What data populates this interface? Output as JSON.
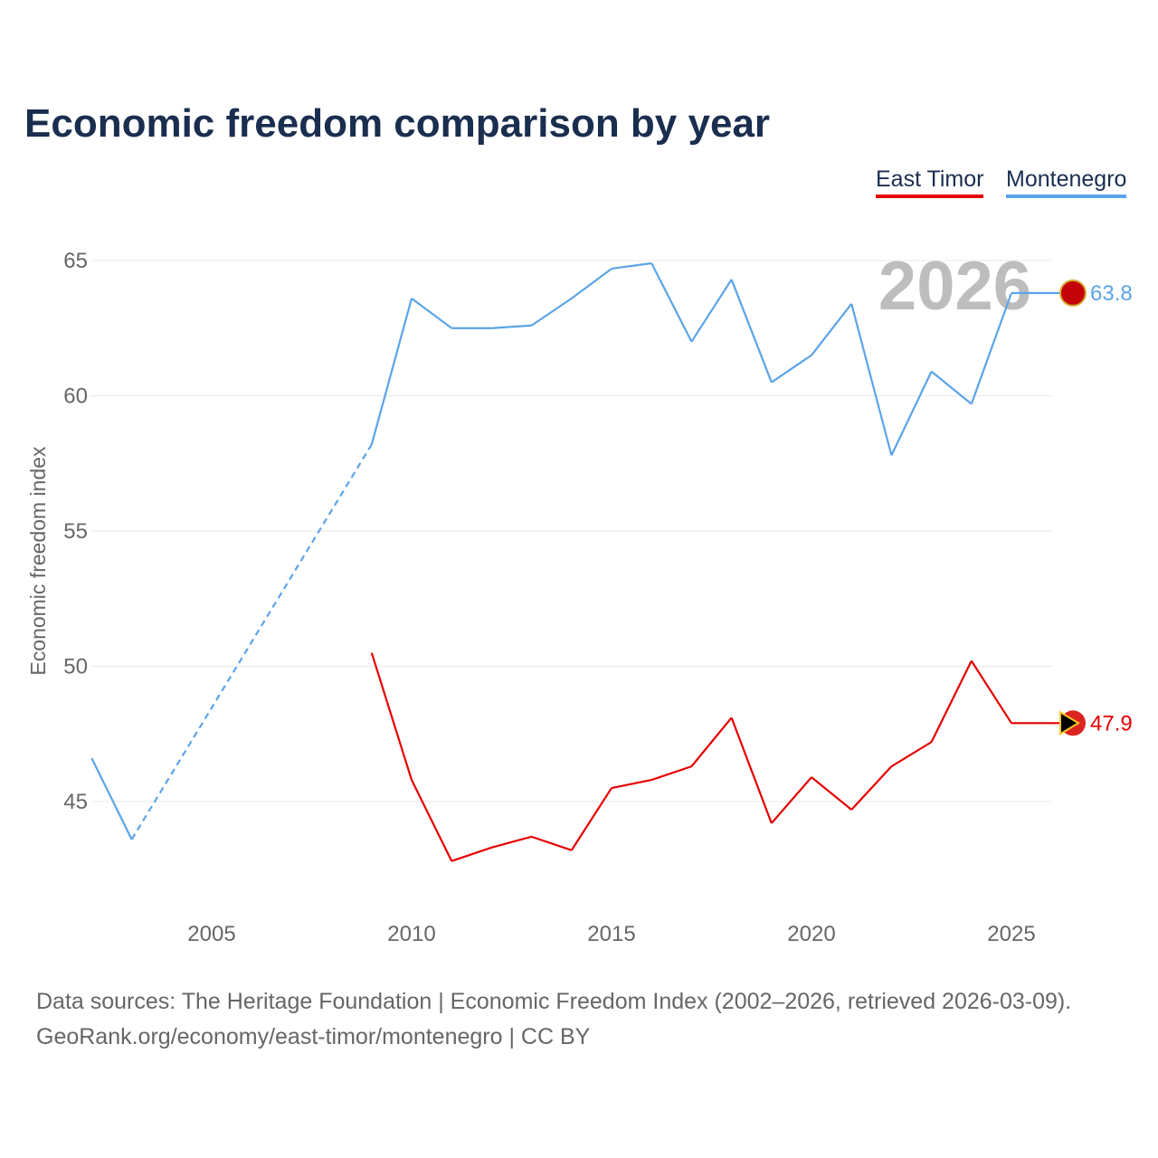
{
  "title": "Economic freedom comparison by year",
  "source_line1": "Data sources: The Heritage Foundation | Economic Freedom Index (2002–2026, retrieved 2026-03-09).",
  "source_line2": "GeoRank.org/economy/east-timor/montenegro | CC BY",
  "chart_data": {
    "type": "line",
    "title": "Economic freedom comparison by year",
    "xlabel": "",
    "ylabel": "Economic freedom index",
    "xlim": [
      2002,
      2026
    ],
    "ylim": [
      41,
      67
    ],
    "xticks": [
      2005,
      2010,
      2015,
      2020,
      2025
    ],
    "yticks": [
      45,
      50,
      55,
      60,
      65
    ],
    "year_label": "2026",
    "legend_position": "top-right",
    "series": [
      {
        "name": "East Timor",
        "color": "#e60000",
        "end_label": "47.9",
        "x": [
          2009,
          2010,
          2011,
          2012,
          2013,
          2014,
          2015,
          2016,
          2017,
          2018,
          2019,
          2020,
          2021,
          2022,
          2023,
          2024,
          2025,
          2026
        ],
        "values": [
          50.5,
          45.8,
          42.8,
          43.3,
          43.7,
          43.2,
          45.5,
          45.8,
          46.3,
          48.1,
          44.2,
          45.9,
          44.7,
          46.3,
          47.2,
          50.2,
          47.9,
          47.9
        ]
      },
      {
        "name": "Montenegro",
        "color": "#5ba4e8",
        "end_label": "63.8",
        "dashed_gap": [
          2003,
          2009
        ],
        "x": [
          2002,
          2003,
          2009,
          2010,
          2011,
          2012,
          2013,
          2014,
          2015,
          2016,
          2017,
          2018,
          2019,
          2020,
          2021,
          2022,
          2023,
          2024,
          2025,
          2026
        ],
        "values": [
          46.6,
          43.6,
          58.2,
          63.6,
          62.5,
          62.5,
          62.6,
          63.6,
          64.7,
          64.9,
          62.0,
          64.3,
          60.5,
          61.5,
          63.4,
          57.8,
          60.9,
          59.7,
          63.8,
          63.8
        ]
      }
    ]
  }
}
